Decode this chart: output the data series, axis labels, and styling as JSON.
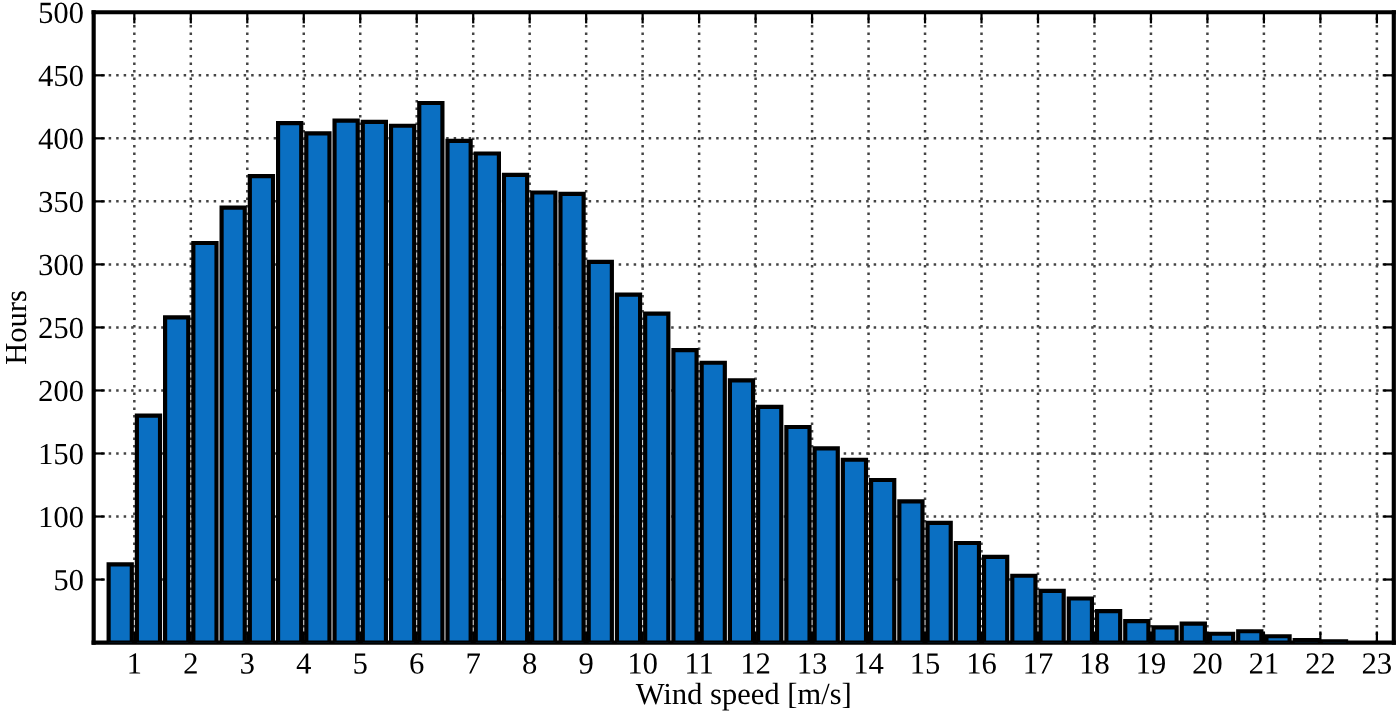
{
  "chart_data": {
    "type": "histogram",
    "xlabel": "Wind speed [m/s]",
    "ylabel": "Hours",
    "color": "#0a6fc2",
    "bins": [
      0.5,
      1,
      1.5,
      2,
      2.5,
      3,
      3.5,
      4,
      4.5,
      5,
      5.5,
      6,
      6.5,
      7,
      7.5,
      8,
      8.5,
      9,
      9.5,
      10,
      10.5,
      11,
      11.5,
      12,
      12.5,
      13,
      13.5,
      14,
      14.5,
      15,
      15.5,
      16,
      16.5,
      17,
      17.5,
      18,
      18.5,
      19,
      19.5,
      20,
      20.5,
      21,
      21.5,
      22,
      22.5
    ],
    "values": [
      62,
      180,
      258,
      317,
      345,
      370,
      412,
      404,
      414,
      413,
      410,
      428,
      398,
      388,
      371,
      357,
      356,
      302,
      276,
      261,
      232,
      222,
      208,
      187,
      171,
      154,
      145,
      129,
      112,
      95,
      79,
      68,
      53,
      41,
      35,
      25,
      17,
      12,
      15,
      7,
      9,
      5,
      2,
      1
    ],
    "xlim": [
      0.28,
      23.3
    ],
    "xticks": [
      1,
      2,
      3,
      4,
      5,
      6,
      7,
      8,
      9,
      10,
      11,
      12,
      13,
      14,
      15,
      16,
      17,
      18,
      19,
      20,
      21,
      22,
      23
    ],
    "ylim": [
      0,
      500
    ],
    "yticks": [
      50,
      100,
      150,
      200,
      250,
      300,
      350,
      400,
      450,
      500
    ],
    "grid": true
  }
}
